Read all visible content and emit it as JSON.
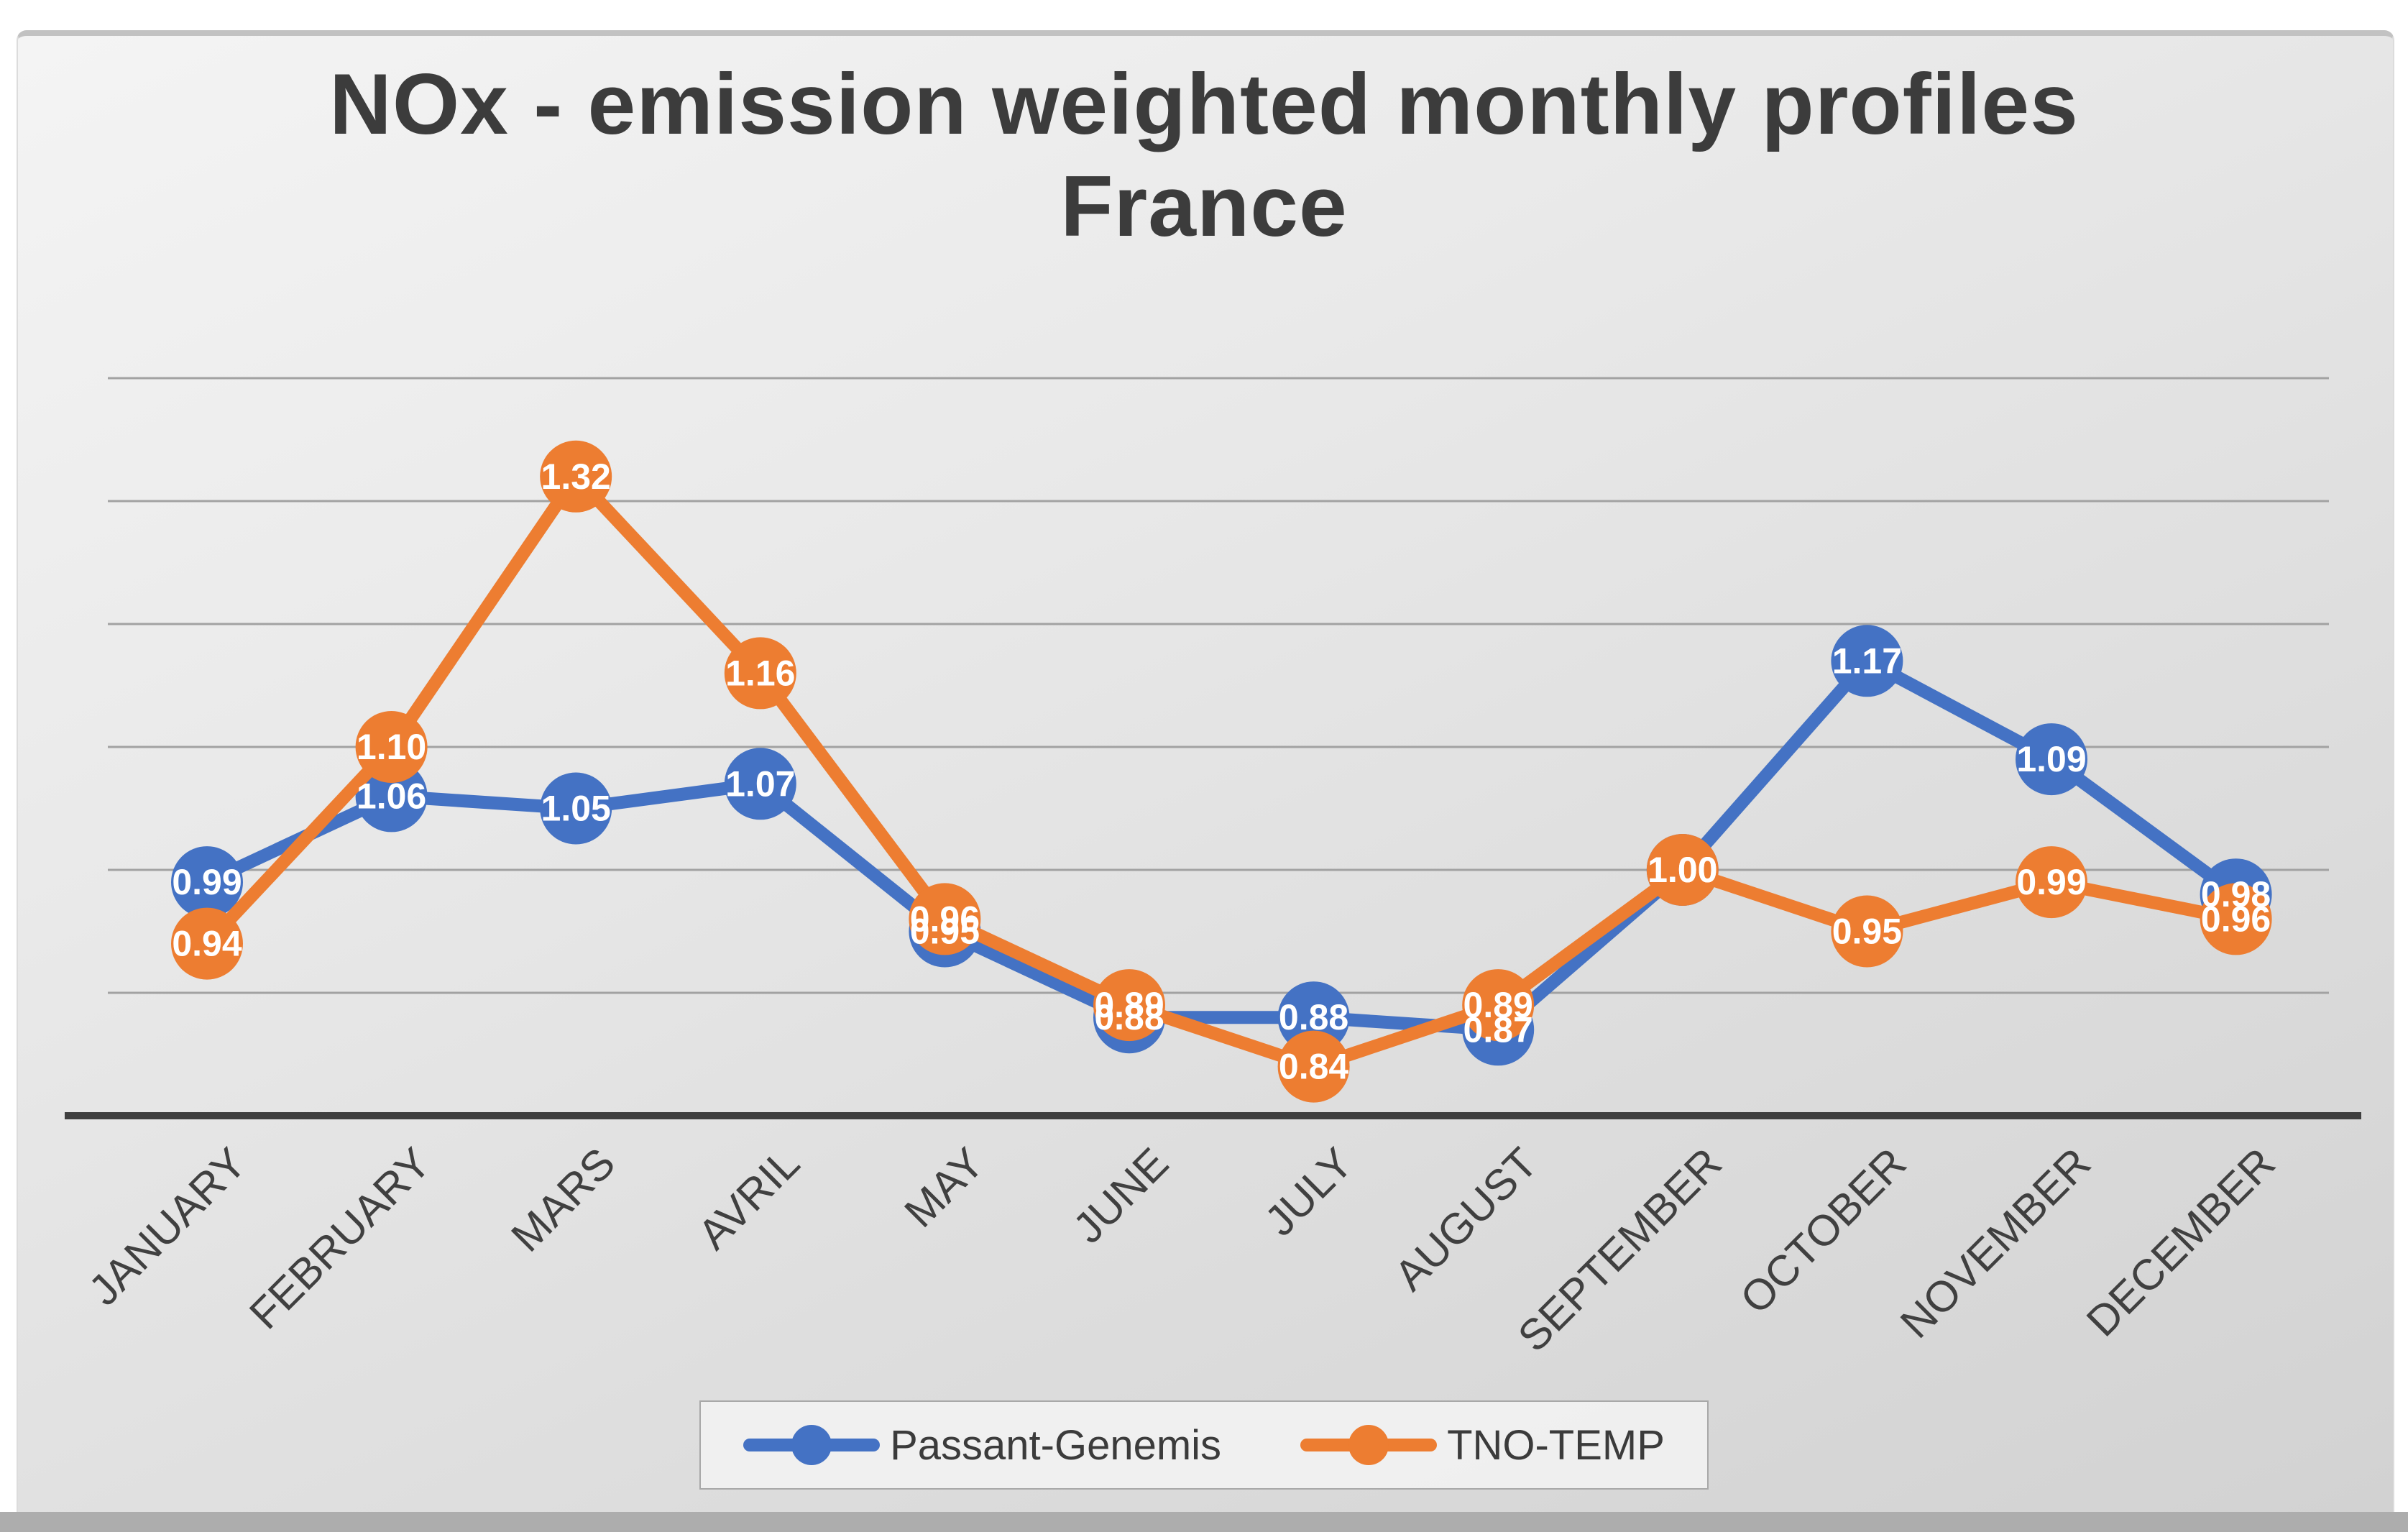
{
  "chart_data": {
    "type": "line",
    "title": "NOx - emission weighted monthly profiles",
    "subtitle": "France",
    "categories": [
      "JANUARY",
      "FEBRUARY",
      "MARS",
      "AVRIL",
      "MAY",
      "JUNE",
      "JULY",
      "AUGUST",
      "SEPTEMBER",
      "OCTOBER",
      "NOVEMBER",
      "DECEMBER"
    ],
    "series": [
      {
        "name": "Passant-Genemis",
        "color": "#4472C4",
        "values": [
          0.99,
          1.06,
          1.05,
          1.07,
          0.95,
          0.88,
          0.88,
          0.87,
          1.0,
          1.17,
          1.09,
          0.98
        ]
      },
      {
        "name": "TNO-TEMP",
        "color": "#ED7D31",
        "values": [
          0.94,
          1.1,
          1.32,
          1.16,
          0.96,
          0.89,
          0.84,
          0.89,
          1.0,
          0.95,
          0.99,
          0.96
        ]
      }
    ],
    "ylim": [
      0.8,
      1.45
    ],
    "gridline_values": [
      0.9,
      1.0,
      1.1,
      1.2,
      1.3,
      1.4
    ],
    "grid": true,
    "y_axis_labels_visible": false,
    "x_label_rotation_deg": 45,
    "legend_position": "bottom",
    "data_label_format": "0.00",
    "data_label_color": "#FFFFFF"
  },
  "styles": {
    "gridline_color": "#a2a2a2",
    "axis_line_color": "#3f3f3f",
    "axis_text_color": "#404040",
    "title_color": "#3c3c3c"
  }
}
